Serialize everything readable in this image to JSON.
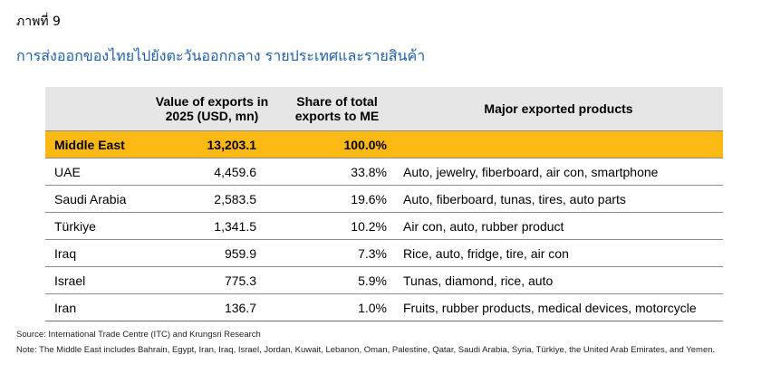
{
  "figure_label": "ภาพที่ 9",
  "title": "การส่งออกของไทยไปยังตะวันออกกลาง รายประเทศและรายสินค้า",
  "table": {
    "headers": {
      "country": "",
      "value_line1": "Value of exports in",
      "value_line2": "2025 (USD, mn)",
      "share_line1": "Share of total",
      "share_line2": "exports to ME",
      "products": "Major exported products"
    },
    "total": {
      "country": "Middle East",
      "value": "13,203.1",
      "share": "100.0%",
      "products": ""
    },
    "rows": [
      {
        "country": "UAE",
        "value": "4,459.6",
        "share": "33.8%",
        "products": "Auto, jewelry, fiberboard, air con, smartphone"
      },
      {
        "country": "Saudi Arabia",
        "value": "2,583.5",
        "share": "19.6%",
        "products": "Auto, fiberboard, tunas, tires, auto parts"
      },
      {
        "country": "Türkiye",
        "value": "1,341.5",
        "share": "10.2%",
        "products": "Air con, auto, rubber product"
      },
      {
        "country": "Iraq",
        "value": "959.9",
        "share": "7.3%",
        "products": "Rice, auto, fridge, tire, air con"
      },
      {
        "country": "Israel",
        "value": "775.3",
        "share": "5.9%",
        "products": "Tunas, diamond, rice, auto"
      },
      {
        "country": "Iran",
        "value": "136.7",
        "share": "1.0%",
        "products": "Fruits, rubber products, medical devices, motorcycle"
      }
    ]
  },
  "source": "Source: International Trade Centre (ITC) and Krungsri Research",
  "note": "Note: The Middle East includes Bahrain, Egypt, Iran, Iraq, Israel, Jordan, Kuwait, Lebanon, Oman, Palestine, Qatar, Saudi Arabia, Syria, Türkiye, the United Arab Emirates, and Yemen."
}
